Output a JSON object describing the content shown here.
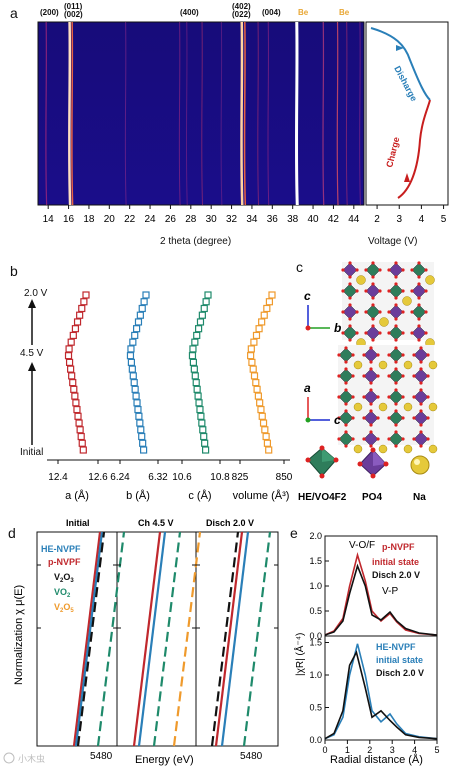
{
  "figure": {
    "panel_a": {
      "label": "a",
      "peak_labels": [
        "(200)",
        "(011)",
        "(002)",
        "(400)",
        "(402)",
        "(022)",
        "(004)",
        "Be",
        "Be"
      ],
      "heatmap_xlabel": "2 theta (degree)",
      "heatmap_ticks": [
        "14",
        "16",
        "18",
        "20",
        "22",
        "24",
        "26",
        "28",
        "30",
        "32",
        "34",
        "36",
        "38",
        "40",
        "42",
        "44"
      ],
      "voltage_xlabel": "Voltage (V)",
      "voltage_ticks": [
        "2",
        "3",
        "4",
        "5"
      ],
      "disharge_label": "Disharge",
      "charge_label": "Charge",
      "colors": {
        "disharge": "#2a7fb8",
        "charge": "#c81e1e",
        "be": "#e8a735"
      }
    },
    "panel_b": {
      "label": "b",
      "state_top": "2.0 V",
      "state_mid": "4.5 V",
      "state_bottom": "Initial",
      "subplots": [
        {
          "xlabel": "a (Å)",
          "ticks": [
            "12.4",
            "12.6"
          ],
          "color": "#c0282d"
        },
        {
          "xlabel": "b (Å)",
          "ticks": [
            "6.24",
            "6.32"
          ],
          "color": "#2a7fb8"
        },
        {
          "xlabel": "c (Å)",
          "ticks": [
            "10.6",
            "10.8"
          ],
          "color": "#1f8a6b"
        },
        {
          "xlabel": "volume (Å³)",
          "ticks": [
            "825",
            "850"
          ],
          "color": "#ef9a2c"
        }
      ]
    },
    "panel_c": {
      "label": "c",
      "axis_top_vertical": "c",
      "axis_top_horizontal": "b",
      "axis_bottom_vertical": "a",
      "axis_bottom_horizontal": "c",
      "legend": [
        "HE/VO4F2",
        "PO4",
        "Na"
      ]
    },
    "panel_d": {
      "label": "d",
      "col_titles": [
        "Initial",
        "Ch 4.5 V",
        "Disch 2.0 V"
      ],
      "legend": [
        {
          "text": "HE-NVPF",
          "color": "#2a7fb8"
        },
        {
          "text": "p-NVPF",
          "color": "#c0282d"
        },
        {
          "text": "V2O3",
          "color": "#111111"
        },
        {
          "text": "VO2",
          "color": "#1f8a6b"
        },
        {
          "text": "V2O5",
          "color": "#ef9a2c"
        }
      ],
      "ylabel": "Normalization χ μ(E)",
      "xlabel": "Energy (eV)",
      "xtick": "5480"
    },
    "panel_e": {
      "label": "e",
      "ylabel": "|χR| (Å⁻⁴)",
      "xlabel": "Radial distance (Å)",
      "xticks": [
        "0",
        "1",
        "2",
        "3",
        "4",
        "5"
      ],
      "yticks": [
        "0.0",
        "0.5",
        "1.0",
        "1.5",
        "2.0"
      ],
      "top_annotations": {
        "peak1": "V-O/F",
        "peak2": "V-P"
      },
      "top_legend": [
        {
          "text": "p-NVPF",
          "color": "#c0282d"
        },
        {
          "text": "initial state",
          "color": "#c0282d"
        },
        {
          "text": "Disch 2.0 V",
          "color": "#111111"
        }
      ],
      "bottom_legend": [
        {
          "text": "HE-NVPF",
          "color": "#2a7fb8"
        },
        {
          "text": "initial state",
          "color": "#2a7fb8"
        },
        {
          "text": "Disch 2.0 V",
          "color": "#111111"
        }
      ]
    },
    "watermark": "小木虫"
  }
}
